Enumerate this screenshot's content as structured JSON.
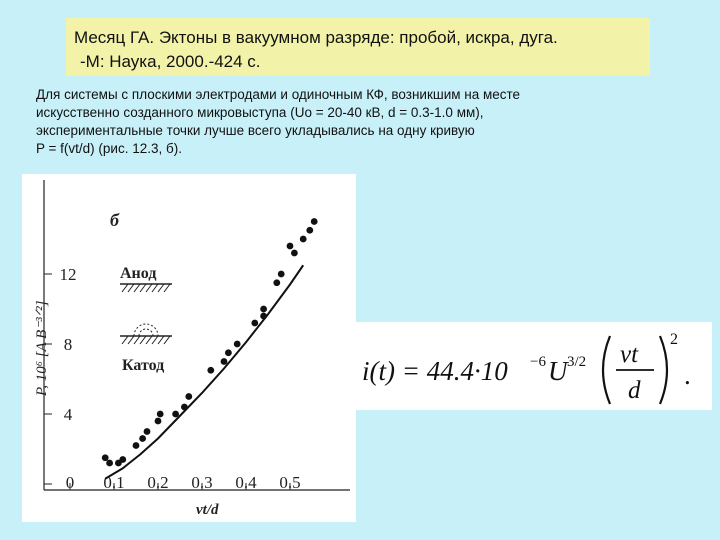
{
  "citation": {
    "line1": "Месяц ГА. Эктоны в вакуумном разряде: пробой, искра, дуга.",
    "line2": "-М: Наука, 2000.-424 с."
  },
  "description": {
    "lines": [
      "Для системы с плоскими электродами и одиночным КФ, возникшим на месте",
      "искусственно созданного микровыступа (Uo = 20-40 кВ, d = 0.3-1.0 мм),",
      "экспериментальные точки лучше всего укладывались на одну кривую",
      "P = f(vt/d) (рис. 12.3, б)."
    ]
  },
  "figure": {
    "panel_label": "б",
    "anode_label": "Анод",
    "cathode_label": "Катод",
    "ylabel": "P, 10⁶ [A B⁻³ᐟ²]",
    "xlabel": "vt/d"
  },
  "formula": {
    "lhs": "i(t) = 44.4·10",
    "exp1": "−6",
    "u": "U",
    "exp2": "3/2",
    "num": "vt",
    "den": "d",
    "power": "2",
    "end": "."
  },
  "chart_data": {
    "type": "scatter",
    "xlabel": "vt/d",
    "ylabel": "P, 10⁶ [A B⁻³ᐟ²]",
    "xlim": [
      0,
      0.6
    ],
    "ylim": [
      0,
      16
    ],
    "xticks": [
      "0",
      "0.1",
      "0.2",
      "0.3",
      "0.4",
      "0.5"
    ],
    "yticks": [
      "0",
      "4",
      "8",
      "12"
    ],
    "grid": false,
    "series": [
      {
        "style": "points",
        "x": [
          0.08,
          0.09,
          0.11,
          0.12,
          0.15,
          0.165,
          0.175,
          0.2,
          0.205,
          0.24,
          0.26,
          0.27,
          0.32,
          0.35,
          0.36,
          0.38,
          0.42,
          0.44,
          0.44,
          0.47,
          0.48,
          0.5,
          0.51,
          0.53,
          0.545,
          0.555
        ],
        "y": [
          1.5,
          1.2,
          1.2,
          1.4,
          2.2,
          2.6,
          3.0,
          3.6,
          4.0,
          4.0,
          4.4,
          5.0,
          6.5,
          7.0,
          7.5,
          8.0,
          9.2,
          9.6,
          10.0,
          11.5,
          12.0,
          13.6,
          13.2,
          14.0,
          14.5,
          15.0
        ]
      },
      {
        "style": "curve",
        "x": [
          0.08,
          0.12,
          0.16,
          0.2,
          0.25,
          0.3,
          0.35,
          0.4,
          0.45,
          0.5,
          0.53
        ],
        "y": [
          0.3,
          0.9,
          1.7,
          2.6,
          3.9,
          5.2,
          6.6,
          8.1,
          9.7,
          11.4,
          12.5
        ]
      }
    ]
  }
}
